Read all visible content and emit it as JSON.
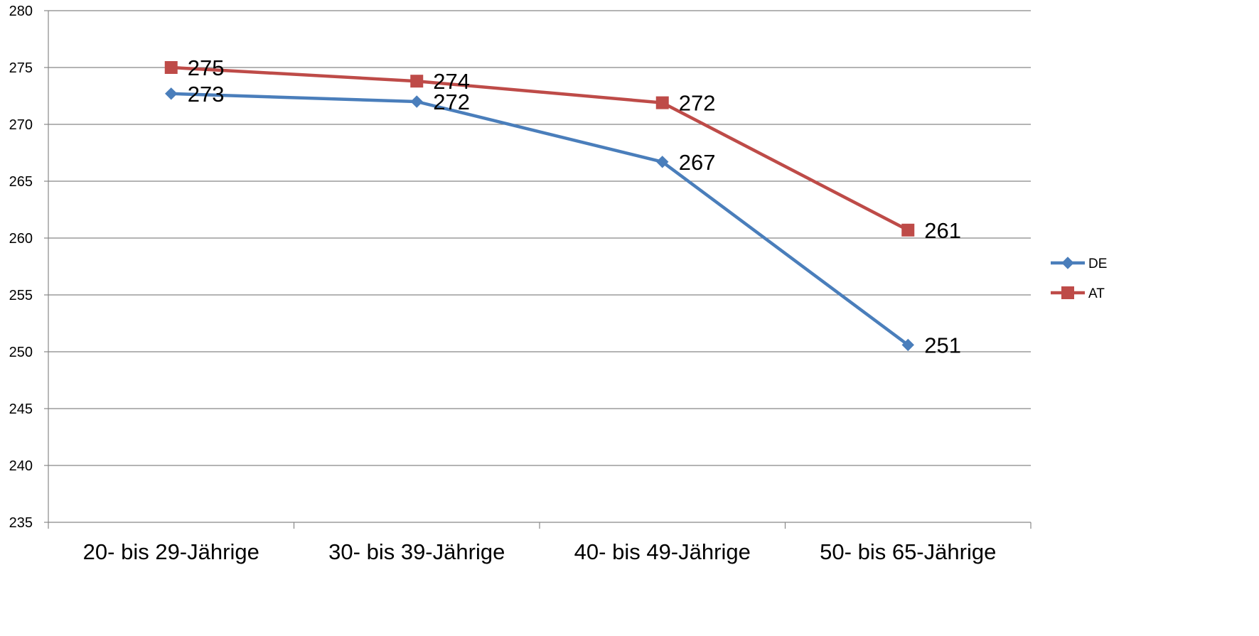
{
  "chart_data": {
    "type": "line",
    "categories": [
      "20- bis 29-Jährige",
      "30- bis 39-Jährige",
      "40- bis 49-Jährige",
      "50- bis 65-Jährige"
    ],
    "series": [
      {
        "name": "DE",
        "values": [
          272.7,
          272.0,
          266.7,
          250.6
        ],
        "labels": [
          "273",
          "272",
          "267",
          "251"
        ],
        "color": "#4A7EBB",
        "marker": "diamond"
      },
      {
        "name": "AT",
        "values": [
          275.0,
          273.8,
          271.9,
          260.7
        ],
        "labels": [
          "275",
          "274",
          "272",
          "261"
        ],
        "color": "#BE4B48",
        "marker": "square"
      }
    ],
    "ylim": [
      235,
      280
    ],
    "yticks": [
      235,
      240,
      245,
      250,
      255,
      260,
      265,
      270,
      275,
      280
    ],
    "grid": true,
    "legend": "right",
    "title": "",
    "xlabel": "",
    "ylabel": "",
    "gridline_color": "#888888",
    "axis_color": "#888888"
  }
}
